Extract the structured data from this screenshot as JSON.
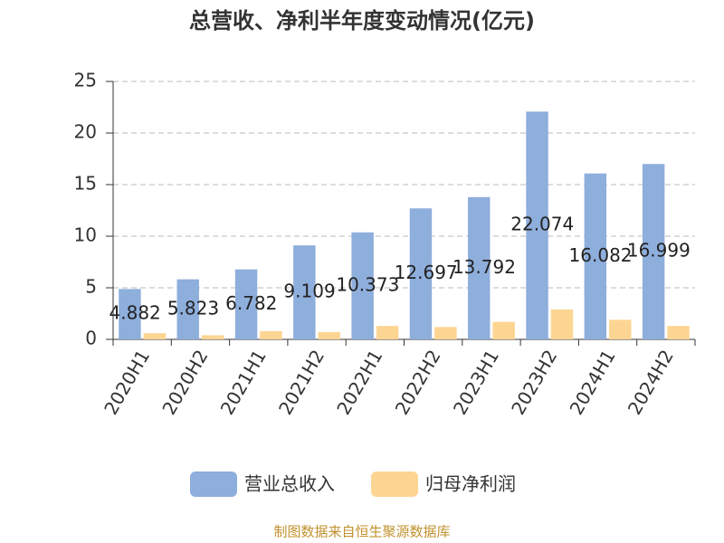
{
  "chart_data": {
    "type": "bar",
    "title": "总营收、净利半年度变动情况(亿元)",
    "categories": [
      "2020H1",
      "2020H2",
      "2021H1",
      "2021H2",
      "2022H1",
      "2022H2",
      "2023H1",
      "2023H2",
      "2024H1",
      "2024H2"
    ],
    "series": [
      {
        "name": "营业总收入",
        "color": "#8eaedc",
        "values": [
          4.882,
          5.823,
          6.782,
          9.109,
          10.373,
          12.697,
          13.792,
          22.074,
          16.082,
          16.999
        ],
        "show_labels": true
      },
      {
        "name": "归母净利润",
        "color": "#fdd592",
        "values": [
          0.6,
          0.4,
          0.8,
          0.7,
          1.3,
          1.2,
          1.7,
          2.9,
          1.9,
          1.3
        ],
        "show_labels": false
      }
    ],
    "ylim": [
      0,
      25
    ],
    "yticks": [
      0,
      5,
      10,
      15,
      20,
      25
    ],
    "grid": true,
    "source": "制图数据来自恒生聚源数据库"
  }
}
